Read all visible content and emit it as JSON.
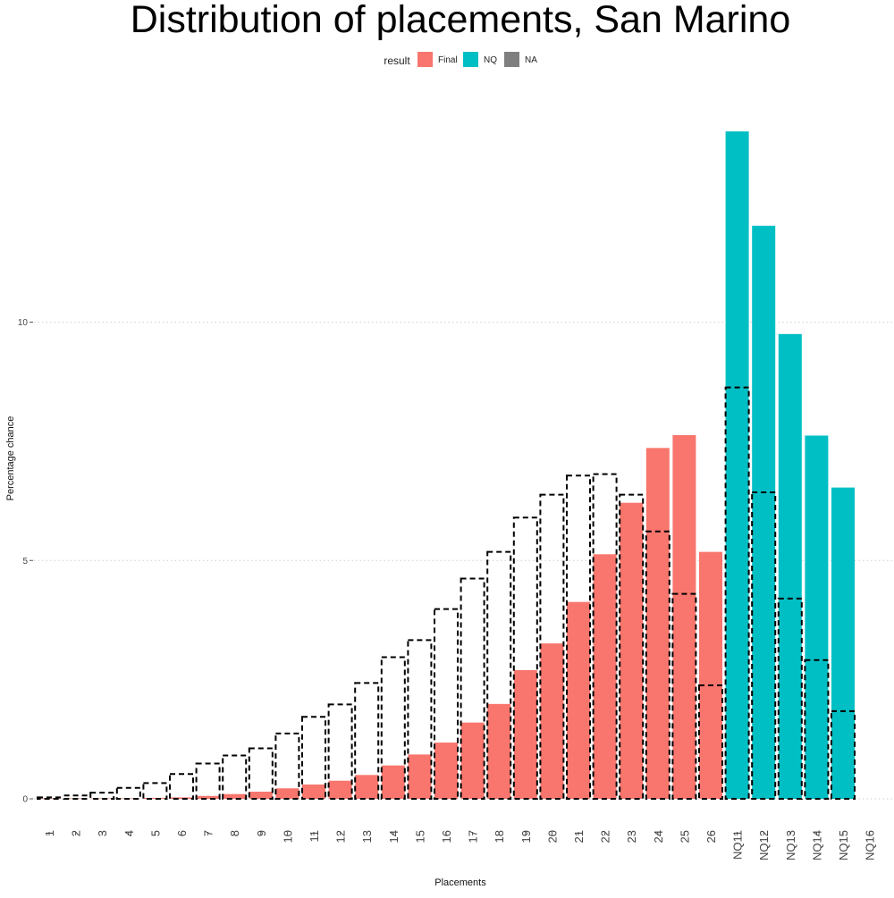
{
  "chart_data": {
    "type": "bar",
    "title": "Distribution of placements, San Marino",
    "xlabel": "Placements",
    "ylabel": "Percentage chance",
    "ylim": [
      0,
      14.4
    ],
    "yticks": [
      0,
      5,
      10
    ],
    "grid": "horizontal dotted",
    "legend": {
      "title": "result",
      "position": "top",
      "entries": [
        {
          "label": "Final",
          "color": "#F8766D"
        },
        {
          "label": "NQ",
          "color": "#00BFC4"
        },
        {
          "label": "NA",
          "color": "#7F7F7F"
        }
      ]
    },
    "categories": [
      "1",
      "2",
      "3",
      "4",
      "5",
      "6",
      "7",
      "8",
      "9",
      "10",
      "11",
      "12",
      "13",
      "14",
      "15",
      "16",
      "17",
      "18",
      "19",
      "20",
      "21",
      "22",
      "23",
      "24",
      "25",
      "26",
      "NQ11",
      "NQ12",
      "NQ13",
      "NQ14",
      "NQ15",
      "NQ16"
    ],
    "series": [
      {
        "name": "Final",
        "color": "#F8766D",
        "values": [
          0.01,
          0.01,
          0.01,
          0.01,
          0.02,
          0.03,
          0.06,
          0.1,
          0.15,
          0.22,
          0.3,
          0.38,
          0.5,
          0.7,
          0.93,
          1.18,
          1.6,
          1.99,
          2.7,
          3.26,
          4.13,
          5.13,
          6.21,
          7.36,
          7.63,
          5.18,
          null,
          null,
          null,
          null,
          null,
          null
        ]
      },
      {
        "name": "NQ",
        "color": "#00BFC4",
        "values": [
          null,
          null,
          null,
          null,
          null,
          null,
          null,
          null,
          null,
          null,
          null,
          null,
          null,
          null,
          null,
          null,
          null,
          null,
          null,
          null,
          null,
          null,
          null,
          null,
          null,
          null,
          14.0,
          12.02,
          9.75,
          7.62,
          6.53,
          null
        ]
      }
    ],
    "overlay": {
      "style": "dashed outline",
      "values": [
        0.03,
        0.07,
        0.13,
        0.23,
        0.33,
        0.52,
        0.74,
        0.91,
        1.06,
        1.37,
        1.72,
        1.98,
        2.43,
        2.97,
        3.33,
        3.98,
        4.62,
        5.18,
        5.9,
        6.38,
        6.78,
        6.81,
        6.38,
        5.61,
        4.3,
        2.38,
        8.63,
        6.43,
        4.2,
        2.91,
        1.84,
        0
      ]
    }
  }
}
